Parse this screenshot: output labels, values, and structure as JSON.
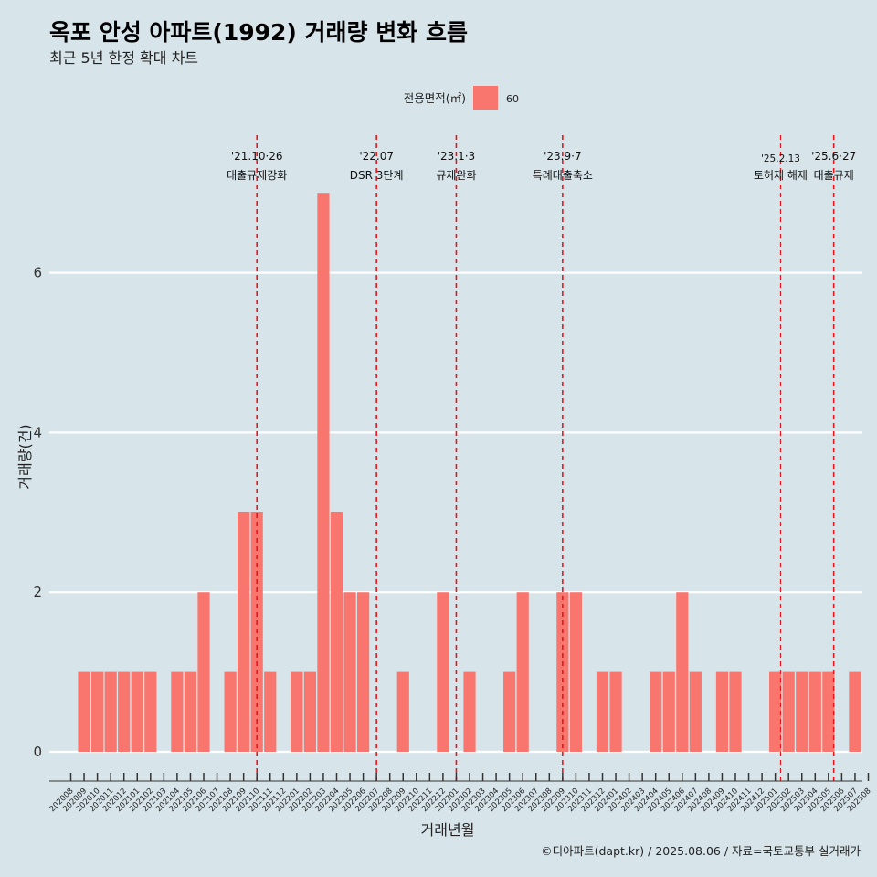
{
  "chart_data": {
    "type": "bar",
    "title": "옥포 안성 아파트(1992) 거래량 변화 흐름",
    "subtitle": "최근 5년 한정 확대 차트",
    "xlabel": "거래년월",
    "ylabel": "거래량(건)",
    "caption": "©디아파트(dapt.kr) / 2025.08.06 / 자료=국토교통부 실거래가",
    "legend": {
      "title": "전용면적(㎡)",
      "position": "top",
      "entries": [
        {
          "label": "60",
          "color": "#f8766d"
        }
      ]
    },
    "bar_color": "#f8766d",
    "categories": [
      "202008",
      "202009",
      "202010",
      "202011",
      "202012",
      "202101",
      "202102",
      "202103",
      "202104",
      "202105",
      "202106",
      "202107",
      "202108",
      "202109",
      "202110",
      "202111",
      "202112",
      "202201",
      "202202",
      "202203",
      "202204",
      "202205",
      "202206",
      "202207",
      "202208",
      "202209",
      "202210",
      "202211",
      "202212",
      "202301",
      "202302",
      "202303",
      "202304",
      "202305",
      "202306",
      "202307",
      "202308",
      "202309",
      "202310",
      "202311",
      "202312",
      "202401",
      "202402",
      "202403",
      "202404",
      "202405",
      "202406",
      "202407",
      "202408",
      "202409",
      "202410",
      "202411",
      "202412",
      "202501",
      "202502",
      "202503",
      "202504",
      "202505",
      "202506",
      "202507",
      "202508"
    ],
    "series": [
      {
        "name": "60",
        "values": [
          0,
          1,
          1,
          1,
          1,
          1,
          1,
          0,
          1,
          1,
          2,
          0,
          1,
          3,
          3,
          1,
          0,
          1,
          1,
          7,
          3,
          2,
          2,
          0,
          0,
          1,
          0,
          0,
          2,
          0,
          1,
          0,
          0,
          1,
          2,
          0,
          0,
          2,
          2,
          0,
          1,
          1,
          0,
          0,
          1,
          1,
          2,
          1,
          0,
          1,
          1,
          0,
          0,
          1,
          1,
          1,
          1,
          1,
          0,
          1,
          0
        ]
      }
    ],
    "ylim": [
      0,
      7.6
    ],
    "yticks": [
      0,
      2,
      4,
      6
    ],
    "grid": true,
    "annotations": [
      {
        "x": 14.0,
        "line1": "'21.10·26",
        "line2": "대출규제강화"
      },
      {
        "x": 23.0,
        "line1": "'22.07",
        "line2": "DSR 3단계"
      },
      {
        "x": 29.0,
        "line1": "'23.1·3",
        "line2": "규제완화"
      },
      {
        "x": 37.0,
        "line1": "'23.9·7",
        "line2": "특례대출축소"
      },
      {
        "x": 53.4,
        "line1": "'25.2.13",
        "line2": "토허제 해제",
        "small": true
      },
      {
        "x": 57.4,
        "line1": "'25.6·27",
        "line2": "대출규제"
      }
    ]
  }
}
